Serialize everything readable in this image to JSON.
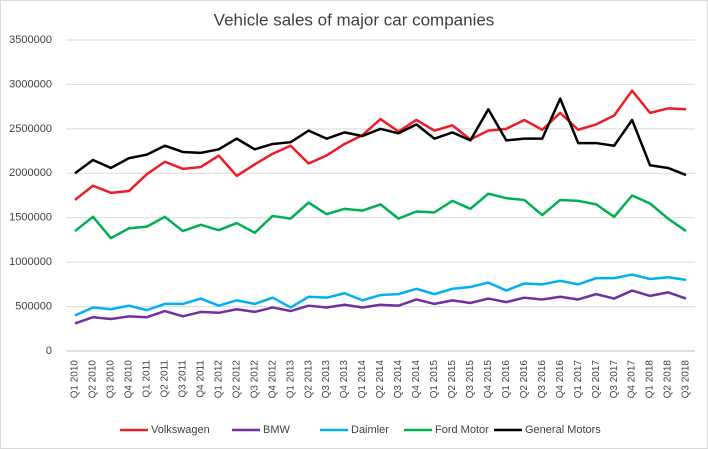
{
  "chart_data": {
    "type": "line",
    "title": "Vehicle sales of major car companies",
    "categories": [
      "Q1 2010",
      "Q2 2010",
      "Q3 2010",
      "Q4 2010",
      "Q1 2011",
      "Q2 2011",
      "Q3 2011",
      "Q4 2011",
      "Q1 2012",
      "Q2 2012",
      "Q3 2012",
      "Q4 2012",
      "Q1 2013",
      "Q2 2013",
      "Q3 2013",
      "Q4 2013",
      "Q1 2014",
      "Q2 2014",
      "Q3 2014",
      "Q4 2014",
      "Q1 2015",
      "Q2 2015",
      "Q3 2015",
      "Q4 2015",
      "Q1 2016",
      "Q2 2016",
      "Q3 2016",
      "Q4 2016",
      "Q1 2017",
      "Q2 2017",
      "Q3 2017",
      "Q4 2017",
      "Q1 2018",
      "Q2 2018",
      "Q3 2018"
    ],
    "series": [
      {
        "name": "Volkswagen",
        "color": "#ee1c25",
        "values": [
          1700000,
          1860000,
          1780000,
          1800000,
          1990000,
          2130000,
          2050000,
          2070000,
          2200000,
          1970000,
          2100000,
          2220000,
          2310000,
          2110000,
          2200000,
          2330000,
          2430000,
          2610000,
          2470000,
          2600000,
          2480000,
          2540000,
          2380000,
          2480000,
          2500000,
          2600000,
          2490000,
          2680000,
          2490000,
          2550000,
          2650000,
          2930000,
          2680000,
          2730000,
          2720000
        ]
      },
      {
        "name": "BMW",
        "color": "#7030a0",
        "values": [
          310000,
          380000,
          360000,
          390000,
          380000,
          450000,
          390000,
          440000,
          430000,
          470000,
          440000,
          490000,
          450000,
          510000,
          490000,
          520000,
          490000,
          520000,
          510000,
          580000,
          530000,
          570000,
          540000,
          590000,
          550000,
          600000,
          580000,
          610000,
          580000,
          640000,
          590000,
          680000,
          620000,
          660000,
          590000
        ]
      },
      {
        "name": "Daimler",
        "color": "#00b0f0",
        "values": [
          400000,
          490000,
          470000,
          510000,
          460000,
          530000,
          530000,
          590000,
          510000,
          570000,
          530000,
          600000,
          490000,
          610000,
          600000,
          650000,
          570000,
          630000,
          640000,
          700000,
          640000,
          700000,
          720000,
          770000,
          680000,
          760000,
          750000,
          790000,
          750000,
          820000,
          820000,
          860000,
          810000,
          830000,
          800000
        ]
      },
      {
        "name": "Ford Motor",
        "color": "#00b050",
        "values": [
          1350000,
          1510000,
          1270000,
          1380000,
          1400000,
          1510000,
          1350000,
          1420000,
          1360000,
          1440000,
          1330000,
          1520000,
          1490000,
          1670000,
          1540000,
          1600000,
          1580000,
          1650000,
          1490000,
          1570000,
          1560000,
          1690000,
          1600000,
          1770000,
          1720000,
          1700000,
          1530000,
          1700000,
          1690000,
          1650000,
          1510000,
          1750000,
          1660000,
          1490000,
          1350000
        ]
      },
      {
        "name": "General Motors",
        "color": "#000000",
        "values": [
          2000000,
          2150000,
          2060000,
          2170000,
          2210000,
          2310000,
          2240000,
          2230000,
          2270000,
          2390000,
          2270000,
          2330000,
          2350000,
          2480000,
          2390000,
          2460000,
          2420000,
          2500000,
          2450000,
          2550000,
          2390000,
          2460000,
          2370000,
          2720000,
          2370000,
          2390000,
          2390000,
          2840000,
          2340000,
          2340000,
          2310000,
          2600000,
          2090000,
          2060000,
          1980000
        ]
      }
    ],
    "ylim": [
      0,
      3500000
    ],
    "yticks": [
      0,
      500000,
      1000000,
      1500000,
      2000000,
      2500000,
      3000000,
      3500000
    ],
    "grid": true,
    "legend": "bottom"
  }
}
